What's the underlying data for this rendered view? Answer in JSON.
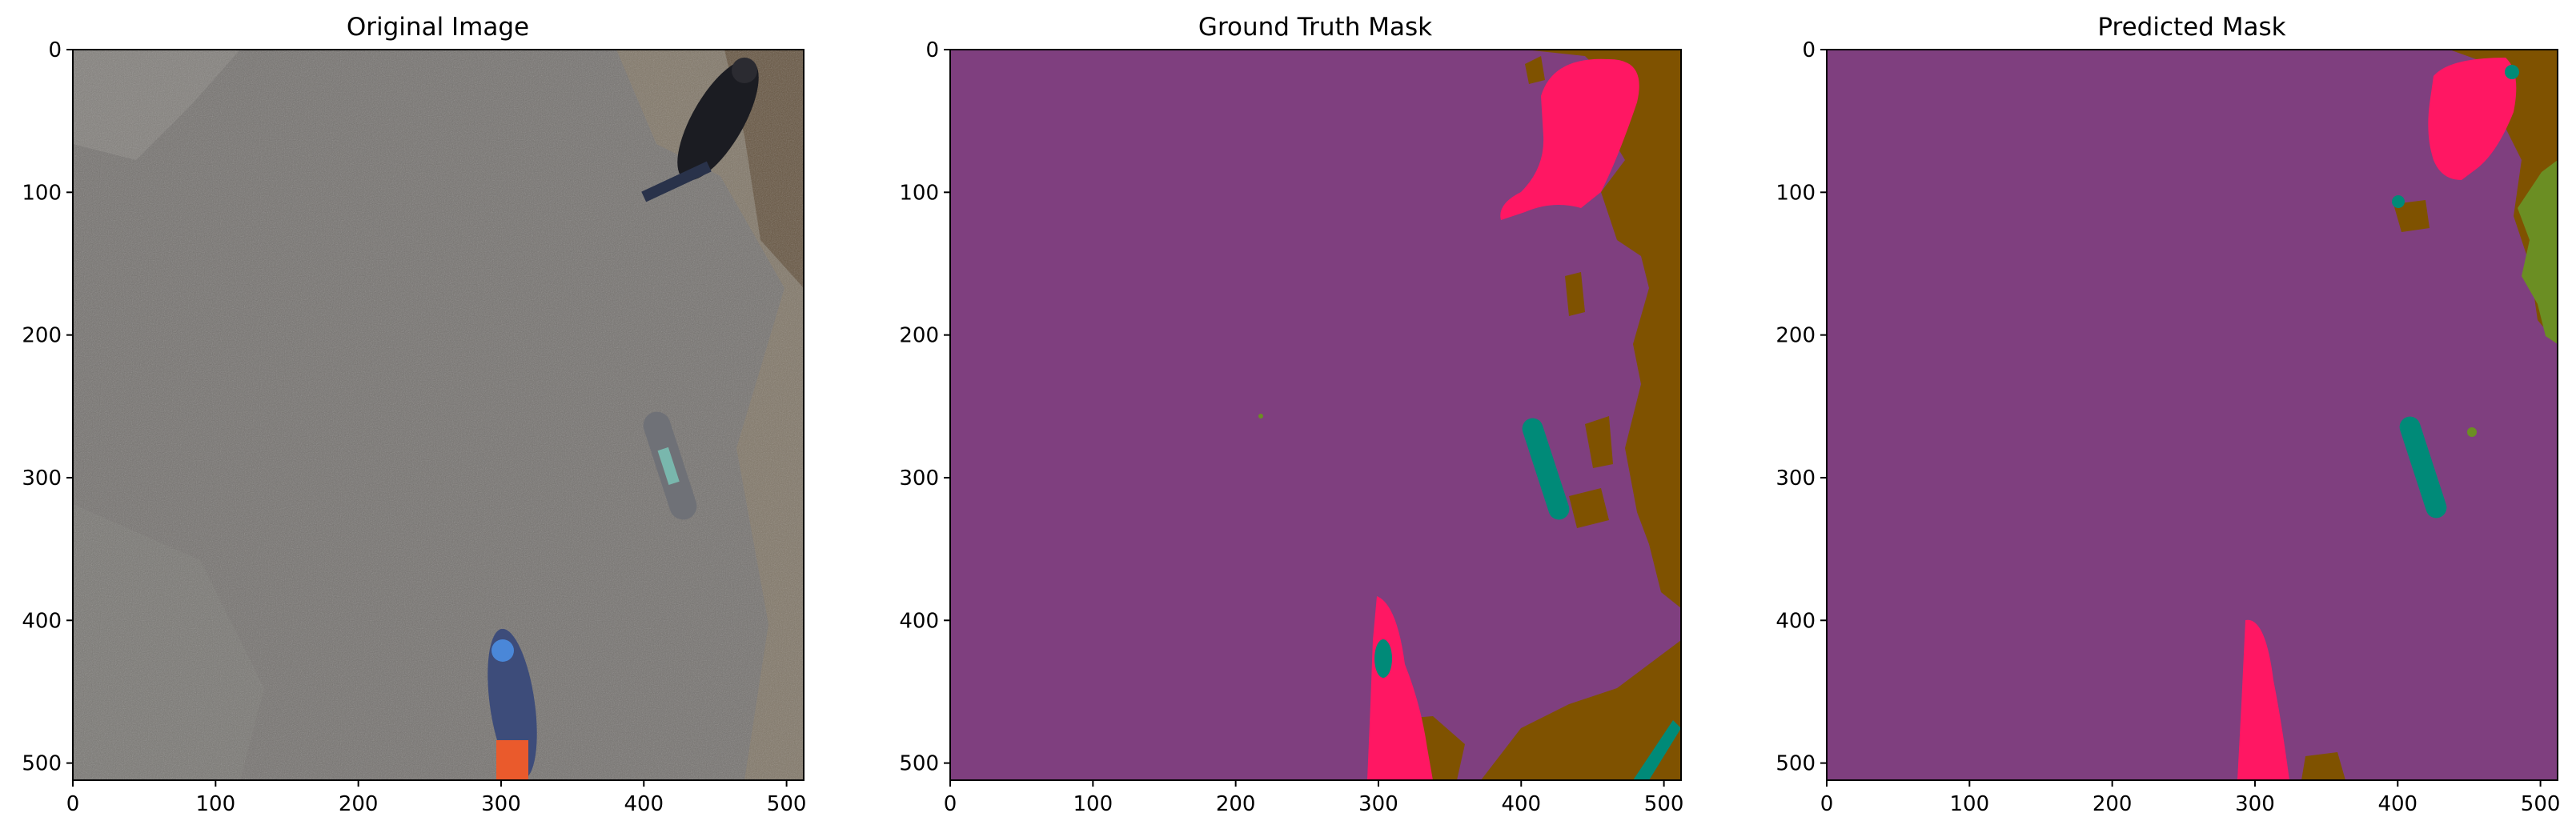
{
  "chart_data": [
    {
      "type": "heatmap",
      "title": "Original Image",
      "xlabel": "",
      "ylabel": "",
      "xlim": [
        0,
        512
      ],
      "ylim": [
        512,
        0
      ],
      "x_ticks": [
        0,
        100,
        200,
        300,
        400,
        500
      ],
      "y_ticks": [
        0,
        100,
        200,
        300,
        400,
        500
      ],
      "content": "photo",
      "objects": [
        {
          "kind": "person",
          "x": 425,
          "y": 70,
          "color": "#1b1c22"
        },
        {
          "kind": "skateboard",
          "x": 410,
          "y": 293,
          "color": "#6f7177"
        },
        {
          "kind": "person",
          "x": 312,
          "y": 440,
          "color": "#3d4c7a"
        }
      ],
      "background_color": "#75726f"
    },
    {
      "type": "heatmap",
      "title": "Ground Truth Mask",
      "xlabel": "",
      "ylabel": "",
      "xlim": [
        0,
        512
      ],
      "ylim": [
        512,
        0
      ],
      "x_ticks": [
        0,
        100,
        200,
        300,
        400,
        500
      ],
      "y_ticks": [
        0,
        100,
        200,
        300,
        400,
        500
      ],
      "content": "mask",
      "palette": {
        "background": "#7f3f7f",
        "brown": "#7f5200",
        "pink": "#ff1763",
        "teal": "#008a78",
        "green": "#6b8e23"
      }
    },
    {
      "type": "heatmap",
      "title": "Predicted Mask",
      "xlabel": "",
      "ylabel": "",
      "xlim": [
        0,
        512
      ],
      "ylim": [
        512,
        0
      ],
      "x_ticks": [
        0,
        100,
        200,
        300,
        400,
        500
      ],
      "y_ticks": [
        0,
        100,
        200,
        300,
        400,
        500
      ],
      "content": "mask",
      "palette": {
        "background": "#7f3f7f",
        "brown": "#7f5200",
        "pink": "#ff1763",
        "teal": "#008a78",
        "green": "#6b8e23"
      }
    }
  ]
}
